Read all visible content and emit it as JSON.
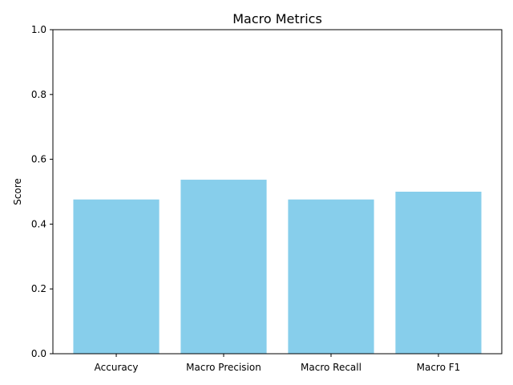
{
  "chart_data": {
    "type": "bar",
    "title": "Macro Metrics",
    "xlabel": "",
    "ylabel": "Score",
    "categories": [
      "Accuracy",
      "Macro Precision",
      "Macro Recall",
      "Macro F1"
    ],
    "values": [
      0.476,
      0.537,
      0.476,
      0.5
    ],
    "ylim": [
      0,
      1.0
    ],
    "yticks": [
      "0.0",
      "0.2",
      "0.4",
      "0.6",
      "0.8",
      "1.0"
    ],
    "grid": false,
    "bar_color": "#87CEEB"
  }
}
